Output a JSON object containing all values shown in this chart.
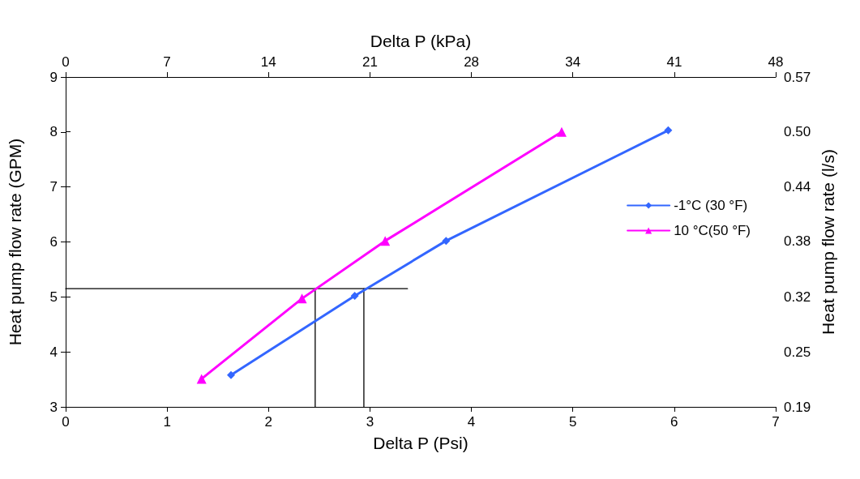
{
  "chart_data": {
    "type": "line",
    "xlabel": "Delta P (Psi)",
    "ylabel": "Heat pump flow rate (GPM)",
    "x2label": "Delta P (kPa)",
    "y2label": "Heat pump flow rate (l/s)",
    "xlim": [
      0,
      7
    ],
    "xticks": [
      0,
      1,
      2,
      3,
      4,
      5,
      6,
      7
    ],
    "ylim": [
      3,
      9
    ],
    "yticks": [
      3,
      4,
      5,
      6,
      7,
      8,
      9
    ],
    "x2lim": [
      0,
      48.26
    ],
    "x2ticks": [
      0,
      {
        "value": 6.89,
        "label": "7"
      },
      {
        "value": 13.79,
        "label": "14"
      },
      {
        "value": 20.68,
        "label": "21"
      },
      {
        "value": 27.58,
        "label": "28"
      },
      {
        "value": 34.47,
        "label": "34"
      },
      {
        "value": 41.37,
        "label": "41"
      },
      {
        "value": 48.26,
        "label": "48"
      }
    ],
    "y2lim": [
      0.189,
      0.568
    ],
    "y2ticks": [
      {
        "value": 0.189,
        "label": "0.19"
      },
      {
        "value": 0.252,
        "label": "0.25"
      },
      {
        "value": 0.315,
        "label": "0.32"
      },
      {
        "value": 0.379,
        "label": "0.38"
      },
      {
        "value": 0.442,
        "label": "0.44"
      },
      {
        "value": 0.505,
        "label": "0.50"
      },
      {
        "value": 0.568,
        "label": "0.57"
      }
    ],
    "grid": false,
    "legend": "right",
    "line_style": "solid",
    "series": [
      {
        "name": "-1°C (30 °F)",
        "color": "#3366ff",
        "marker": "diamond",
        "x": [
          1.63,
          2.85,
          3.75,
          5.94
        ],
        "values": [
          3.58,
          5.02,
          6.02,
          8.03
        ]
      },
      {
        "name": "10 °C(50 °F)",
        "color": "#ff00ff",
        "marker": "triangle",
        "x": [
          1.34,
          2.33,
          3.15,
          4.89
        ],
        "values": [
          3.51,
          4.97,
          6.02,
          8.0
        ]
      },
      {
        "color": "#000000",
        "marker": "none",
        "x": [
          0,
          3.37
        ],
        "values": [
          5.15,
          5.15
        ]
      },
      {
        "color": "#000000",
        "marker": "none",
        "x": [
          2.46,
          2.46
        ],
        "values": [
          3,
          5.15
        ]
      },
      {
        "color": "#000000",
        "marker": "none",
        "x": [
          2.94,
          2.94
        ],
        "values": [
          3,
          5.15
        ]
      }
    ]
  }
}
